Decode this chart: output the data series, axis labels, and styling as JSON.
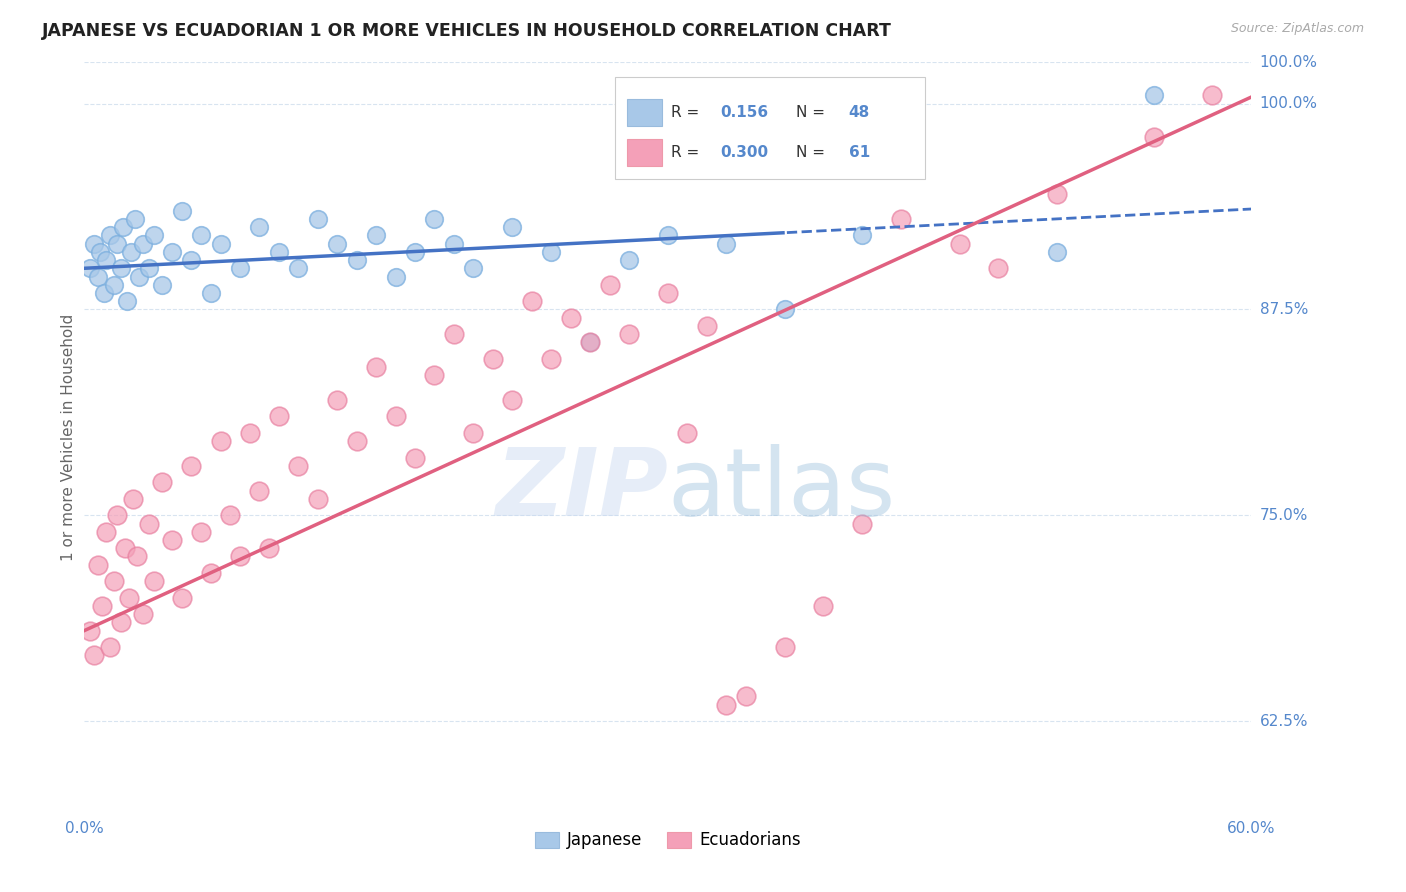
{
  "title": "JAPANESE VS ECUADORIAN 1 OR MORE VEHICLES IN HOUSEHOLD CORRELATION CHART",
  "source": "Source: ZipAtlas.com",
  "ylabel": "1 or more Vehicles in Household",
  "x_min": 0.0,
  "x_max": 60.0,
  "y_min": 57.0,
  "y_max": 102.5,
  "yticks": [
    62.5,
    75.0,
    87.5,
    100.0
  ],
  "ytick_labels": [
    "62.5%",
    "75.0%",
    "87.5%",
    "100.0%"
  ],
  "blue_color": "#a8c8e8",
  "pink_color": "#f4a0b8",
  "trend_blue_color": "#4472c4",
  "trend_pink_color": "#e06080",
  "axis_label_color": "#5588cc",
  "title_color": "#222222",
  "grid_color": "#d8e4f0",
  "background_color": "#ffffff",
  "japanese_points": [
    [
      0.3,
      90.0
    ],
    [
      0.5,
      91.5
    ],
    [
      0.7,
      89.5
    ],
    [
      0.8,
      91.0
    ],
    [
      1.0,
      88.5
    ],
    [
      1.1,
      90.5
    ],
    [
      1.3,
      92.0
    ],
    [
      1.5,
      89.0
    ],
    [
      1.7,
      91.5
    ],
    [
      1.9,
      90.0
    ],
    [
      2.0,
      92.5
    ],
    [
      2.2,
      88.0
    ],
    [
      2.4,
      91.0
    ],
    [
      2.6,
      93.0
    ],
    [
      2.8,
      89.5
    ],
    [
      3.0,
      91.5
    ],
    [
      3.3,
      90.0
    ],
    [
      3.6,
      92.0
    ],
    [
      4.0,
      89.0
    ],
    [
      4.5,
      91.0
    ],
    [
      5.0,
      93.5
    ],
    [
      5.5,
      90.5
    ],
    [
      6.0,
      92.0
    ],
    [
      6.5,
      88.5
    ],
    [
      7.0,
      91.5
    ],
    [
      8.0,
      90.0
    ],
    [
      9.0,
      92.5
    ],
    [
      10.0,
      91.0
    ],
    [
      11.0,
      90.0
    ],
    [
      12.0,
      93.0
    ],
    [
      13.0,
      91.5
    ],
    [
      14.0,
      90.5
    ],
    [
      15.0,
      92.0
    ],
    [
      16.0,
      89.5
    ],
    [
      17.0,
      91.0
    ],
    [
      18.0,
      93.0
    ],
    [
      19.0,
      91.5
    ],
    [
      20.0,
      90.0
    ],
    [
      22.0,
      92.5
    ],
    [
      24.0,
      91.0
    ],
    [
      26.0,
      85.5
    ],
    [
      28.0,
      90.5
    ],
    [
      30.0,
      92.0
    ],
    [
      33.0,
      91.5
    ],
    [
      36.0,
      87.5
    ],
    [
      40.0,
      92.0
    ],
    [
      50.0,
      91.0
    ],
    [
      55.0,
      100.5
    ]
  ],
  "ecuadorian_points": [
    [
      0.3,
      68.0
    ],
    [
      0.5,
      66.5
    ],
    [
      0.7,
      72.0
    ],
    [
      0.9,
      69.5
    ],
    [
      1.1,
      74.0
    ],
    [
      1.3,
      67.0
    ],
    [
      1.5,
      71.0
    ],
    [
      1.7,
      75.0
    ],
    [
      1.9,
      68.5
    ],
    [
      2.1,
      73.0
    ],
    [
      2.3,
      70.0
    ],
    [
      2.5,
      76.0
    ],
    [
      2.7,
      72.5
    ],
    [
      3.0,
      69.0
    ],
    [
      3.3,
      74.5
    ],
    [
      3.6,
      71.0
    ],
    [
      4.0,
      77.0
    ],
    [
      4.5,
      73.5
    ],
    [
      5.0,
      70.0
    ],
    [
      5.5,
      78.0
    ],
    [
      6.0,
      74.0
    ],
    [
      6.5,
      71.5
    ],
    [
      7.0,
      79.5
    ],
    [
      7.5,
      75.0
    ],
    [
      8.0,
      72.5
    ],
    [
      8.5,
      80.0
    ],
    [
      9.0,
      76.5
    ],
    [
      9.5,
      73.0
    ],
    [
      10.0,
      81.0
    ],
    [
      11.0,
      78.0
    ],
    [
      12.0,
      76.0
    ],
    [
      13.0,
      82.0
    ],
    [
      14.0,
      79.5
    ],
    [
      15.0,
      84.0
    ],
    [
      16.0,
      81.0
    ],
    [
      17.0,
      78.5
    ],
    [
      18.0,
      83.5
    ],
    [
      19.0,
      86.0
    ],
    [
      20.0,
      80.0
    ],
    [
      21.0,
      84.5
    ],
    [
      22.0,
      82.0
    ],
    [
      23.0,
      88.0
    ],
    [
      24.0,
      84.5
    ],
    [
      25.0,
      87.0
    ],
    [
      26.0,
      85.5
    ],
    [
      27.0,
      89.0
    ],
    [
      28.0,
      86.0
    ],
    [
      30.0,
      88.5
    ],
    [
      31.0,
      80.0
    ],
    [
      32.0,
      86.5
    ],
    [
      33.0,
      63.5
    ],
    [
      34.0,
      64.0
    ],
    [
      36.0,
      67.0
    ],
    [
      38.0,
      69.5
    ],
    [
      40.0,
      74.5
    ],
    [
      42.0,
      93.0
    ],
    [
      45.0,
      91.5
    ],
    [
      47.0,
      90.0
    ],
    [
      50.0,
      94.5
    ],
    [
      55.0,
      98.0
    ],
    [
      58.0,
      100.5
    ]
  ],
  "blue_trend_intercept": 90.0,
  "blue_trend_slope": 0.06,
  "pink_trend_intercept": 68.0,
  "pink_trend_slope": 0.54,
  "blue_solid_end": 36.0,
  "legend_R_blue": "0.156",
  "legend_N_blue": "48",
  "legend_R_pink": "0.300",
  "legend_N_pink": "61"
}
